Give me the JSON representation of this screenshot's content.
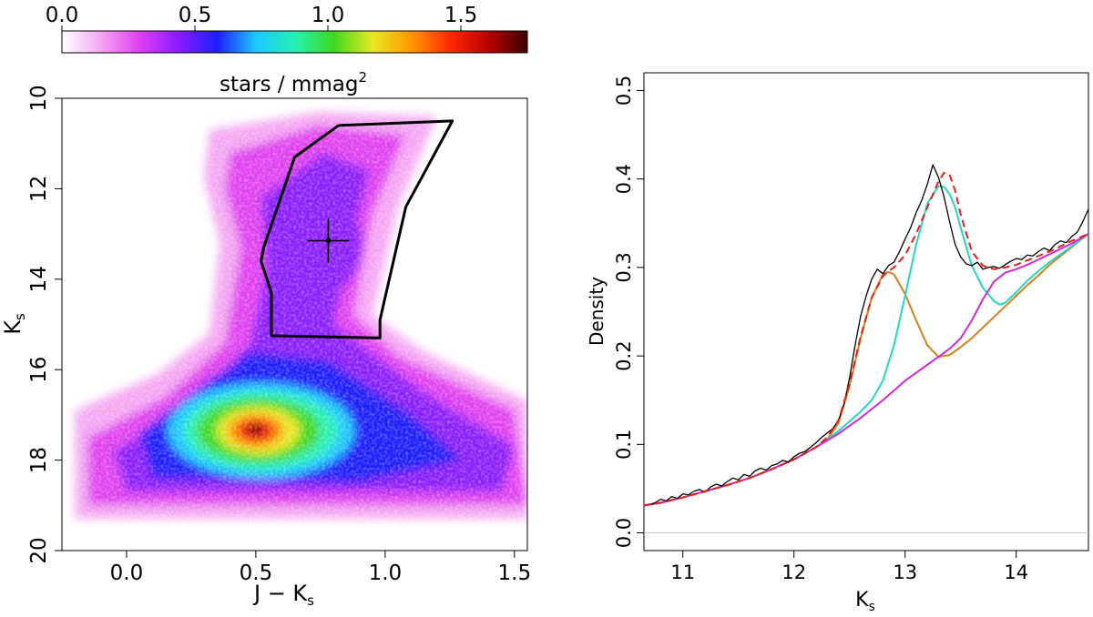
{
  "chart_data": [
    {
      "type": "heatmap",
      "title": "stars/mmag²",
      "colorbar": {
        "label": "stars / mmag",
        "label_sup": "2",
        "range": [
          0.0,
          1.75
        ],
        "tick_values": [
          0.0,
          0.5,
          1.0,
          1.5
        ],
        "tick_labels": [
          "0.0",
          "0.5",
          "1.0",
          "1.5"
        ],
        "colors": [
          "#ffffff",
          "#f4a6f2",
          "#e040f0",
          "#8a1cff",
          "#1e1eff",
          "#1ec8ff",
          "#25f0b4",
          "#3dd820",
          "#e8e820",
          "#ff9800",
          "#ff2a00",
          "#b80000",
          "#3a0000"
        ]
      },
      "xlabel": "J − K",
      "xlabel_sub": "s",
      "ylabel": "K",
      "ylabel_sub": "s",
      "xlim": [
        -0.25,
        1.55
      ],
      "ylim": [
        20,
        10
      ],
      "x_ticks": [
        0.0,
        0.5,
        1.0,
        1.5
      ],
      "x_tick_labels": [
        "0.0",
        "0.5",
        "1.0",
        "1.5"
      ],
      "y_ticks": [
        10,
        12,
        14,
        16,
        18,
        20
      ],
      "y_tick_labels": [
        "10",
        "12",
        "14",
        "16",
        "18",
        "20"
      ],
      "selection_box": [
        [
          0.82,
          10.6
        ],
        [
          1.26,
          10.5
        ],
        [
          1.08,
          12.4
        ],
        [
          0.98,
          14.9
        ],
        [
          0.98,
          15.3
        ],
        [
          0.56,
          15.25
        ],
        [
          0.56,
          14.3
        ],
        [
          0.52,
          13.6
        ],
        [
          0.53,
          13.3
        ],
        [
          0.65,
          11.3
        ],
        [
          0.82,
          10.6
        ]
      ],
      "marker": {
        "x": 0.78,
        "y": 13.15,
        "xerr": 0.08,
        "yerr": 0.5
      },
      "density_peak": {
        "x": 0.5,
        "y": 17.35,
        "value": 1.75
      }
    },
    {
      "type": "line",
      "xlabel": "K",
      "xlabel_sub": "s",
      "ylabel": "Density",
      "xlim": [
        10.65,
        14.65
      ],
      "ylim": [
        -0.02,
        0.52
      ],
      "x_ticks": [
        11,
        12,
        13,
        14
      ],
      "x_tick_labels": [
        "11",
        "12",
        "13",
        "14"
      ],
      "y_ticks": [
        0.0,
        0.1,
        0.2,
        0.3,
        0.4,
        0.5
      ],
      "y_tick_labels": [
        "0.0",
        "0.1",
        "0.2",
        "0.3",
        "0.4",
        "0.5"
      ],
      "zero_line": true,
      "series": [
        {
          "color": "#000000",
          "style": "solid",
          "x": [
            10.65,
            10.7,
            10.75,
            10.8,
            10.85,
            10.9,
            10.95,
            11.0,
            11.05,
            11.1,
            11.15,
            11.2,
            11.25,
            11.3,
            11.35,
            11.4,
            11.45,
            11.5,
            11.55,
            11.6,
            11.65,
            11.7,
            11.75,
            11.8,
            11.85,
            11.9,
            11.95,
            12.0,
            12.05,
            12.1,
            12.15,
            12.2,
            12.25,
            12.3,
            12.35,
            12.4,
            12.45,
            12.5,
            12.55,
            12.6,
            12.65,
            12.7,
            12.75,
            12.8,
            12.85,
            12.9,
            12.95,
            13.0,
            13.05,
            13.1,
            13.15,
            13.2,
            13.25,
            13.3,
            13.35,
            13.4,
            13.45,
            13.5,
            13.55,
            13.6,
            13.65,
            13.7,
            13.75,
            13.8,
            13.85,
            13.9,
            13.95,
            14.0,
            14.05,
            14.1,
            14.15,
            14.2,
            14.25,
            14.3,
            14.35,
            14.4,
            14.45,
            14.5,
            14.55,
            14.6,
            14.65
          ],
          "y": [
            0.031,
            0.032,
            0.034,
            0.038,
            0.036,
            0.041,
            0.039,
            0.044,
            0.043,
            0.047,
            0.049,
            0.046,
            0.052,
            0.055,
            0.053,
            0.058,
            0.062,
            0.06,
            0.066,
            0.064,
            0.07,
            0.073,
            0.071,
            0.076,
            0.078,
            0.082,
            0.08,
            0.086,
            0.09,
            0.092,
            0.097,
            0.102,
            0.108,
            0.113,
            0.118,
            0.127,
            0.145,
            0.175,
            0.212,
            0.245,
            0.268,
            0.287,
            0.298,
            0.293,
            0.302,
            0.306,
            0.318,
            0.332,
            0.345,
            0.362,
            0.376,
            0.394,
            0.416,
            0.402,
            0.38,
            0.352,
            0.326,
            0.312,
            0.304,
            0.302,
            0.306,
            0.298,
            0.3,
            0.301,
            0.299,
            0.303,
            0.307,
            0.31,
            0.309,
            0.314,
            0.313,
            0.318,
            0.322,
            0.319,
            0.326,
            0.33,
            0.328,
            0.335,
            0.34,
            0.352,
            0.366
          ]
        },
        {
          "color": "#e0201a",
          "style": "dashed",
          "x": [
            10.65,
            10.8,
            11.0,
            11.2,
            11.4,
            11.6,
            11.8,
            12.0,
            12.2,
            12.3,
            12.4,
            12.5,
            12.6,
            12.7,
            12.8,
            12.85,
            12.9,
            13.0,
            13.1,
            13.2,
            13.3,
            13.35,
            13.4,
            13.45,
            13.5,
            13.6,
            13.7,
            13.8,
            13.9,
            14.0,
            14.1,
            14.2,
            14.3,
            14.4,
            14.5,
            14.65
          ],
          "y": [
            0.031,
            0.034,
            0.04,
            0.047,
            0.054,
            0.062,
            0.072,
            0.083,
            0.097,
            0.108,
            0.127,
            0.168,
            0.222,
            0.266,
            0.29,
            0.296,
            0.3,
            0.314,
            0.338,
            0.368,
            0.397,
            0.407,
            0.405,
            0.387,
            0.36,
            0.318,
            0.302,
            0.298,
            0.3,
            0.303,
            0.308,
            0.313,
            0.318,
            0.324,
            0.33,
            0.338
          ]
        },
        {
          "color": "#d8801c",
          "style": "solid",
          "x": [
            10.65,
            10.8,
            11.0,
            11.2,
            11.4,
            11.6,
            11.8,
            12.0,
            12.2,
            12.3,
            12.4,
            12.5,
            12.6,
            12.7,
            12.8,
            12.85,
            12.9,
            13.0,
            13.1,
            13.2,
            13.3,
            13.4,
            13.5,
            13.6,
            13.7,
            13.8,
            13.9,
            14.0,
            14.1,
            14.2,
            14.3,
            14.4,
            14.5,
            14.65
          ],
          "y": [
            0.031,
            0.034,
            0.04,
            0.047,
            0.054,
            0.062,
            0.072,
            0.083,
            0.097,
            0.106,
            0.124,
            0.166,
            0.22,
            0.266,
            0.292,
            0.295,
            0.292,
            0.27,
            0.24,
            0.212,
            0.199,
            0.201,
            0.21,
            0.22,
            0.232,
            0.244,
            0.256,
            0.268,
            0.28,
            0.291,
            0.303,
            0.313,
            0.323,
            0.338
          ]
        },
        {
          "color": "#25d6c4",
          "style": "solid",
          "x": [
            10.65,
            10.8,
            11.0,
            11.2,
            11.4,
            11.6,
            11.8,
            12.0,
            12.2,
            12.4,
            12.6,
            12.7,
            12.8,
            12.9,
            13.0,
            13.1,
            13.2,
            13.3,
            13.35,
            13.4,
            13.45,
            13.5,
            13.6,
            13.7,
            13.8,
            13.85,
            13.9,
            14.0,
            14.1,
            14.2,
            14.3,
            14.4,
            14.5,
            14.65
          ],
          "y": [
            0.031,
            0.034,
            0.04,
            0.047,
            0.054,
            0.062,
            0.072,
            0.083,
            0.097,
            0.115,
            0.137,
            0.15,
            0.172,
            0.212,
            0.268,
            0.326,
            0.372,
            0.392,
            0.391,
            0.383,
            0.368,
            0.345,
            0.302,
            0.277,
            0.262,
            0.258,
            0.26,
            0.272,
            0.285,
            0.296,
            0.306,
            0.315,
            0.324,
            0.338
          ]
        },
        {
          "color": "#d02ad8",
          "style": "solid",
          "x": [
            10.65,
            10.8,
            11.0,
            11.2,
            11.4,
            11.6,
            11.8,
            12.0,
            12.2,
            12.4,
            12.6,
            12.8,
            13.0,
            13.2,
            13.4,
            13.5,
            13.6,
            13.7,
            13.8,
            13.9,
            14.0,
            14.1,
            14.2,
            14.3,
            14.4,
            14.5,
            14.65
          ],
          "y": [
            0.031,
            0.034,
            0.04,
            0.047,
            0.054,
            0.062,
            0.072,
            0.083,
            0.097,
            0.112,
            0.13,
            0.15,
            0.172,
            0.19,
            0.208,
            0.22,
            0.24,
            0.264,
            0.284,
            0.294,
            0.298,
            0.303,
            0.309,
            0.315,
            0.321,
            0.327,
            0.338
          ]
        }
      ]
    }
  ]
}
